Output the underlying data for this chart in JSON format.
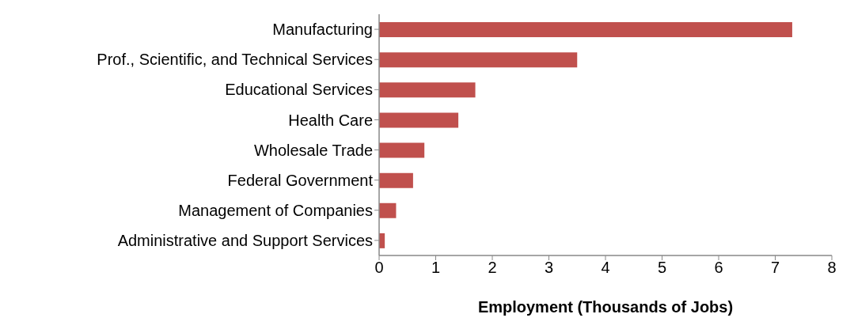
{
  "chart_data": {
    "type": "bar",
    "orientation": "horizontal",
    "xlabel": "Employment (Thousands of Jobs)",
    "categories": [
      "Manufacturing",
      "Prof., Scientific, and Technical Services",
      "Educational Services",
      "Health Care",
      "Wholesale Trade",
      "Federal Government",
      "Management of Companies",
      "Administrative and Support Services"
    ],
    "values": [
      7.3,
      3.5,
      1.7,
      1.4,
      0.8,
      0.6,
      0.3,
      0.1
    ],
    "color": "#c0504d",
    "xlim": [
      0,
      8
    ],
    "xticks": [
      0,
      1,
      2,
      3,
      4,
      5,
      6,
      7,
      8
    ],
    "grid": false,
    "legend": false
  }
}
